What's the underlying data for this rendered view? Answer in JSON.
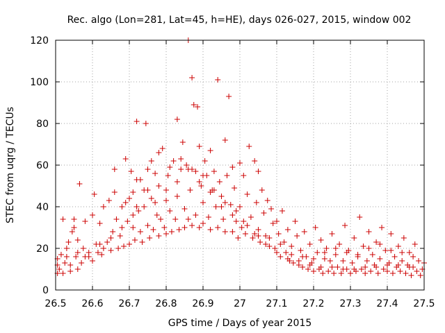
{
  "chart_data": {
    "type": "scatter",
    "title": "Rec. algo (Lon=281, Lat=45, h=HE), days 026-027, 2015, window 002",
    "xlabel": "GPS time / Days of year 2015",
    "ylabel": "STEC from uqrg / TECUs",
    "xlim": [
      26.5,
      27.5
    ],
    "ylim": [
      0,
      120
    ],
    "xticks": [
      26.5,
      26.6,
      26.7,
      26.8,
      26.9,
      27.0,
      27.1,
      27.2,
      27.3,
      27.4,
      27.5
    ],
    "xtick_labels": [
      "26.5",
      "26.6",
      "26.7",
      "26.8",
      "26.9",
      "27",
      "27.1",
      "27.2",
      "27.3",
      "27.4",
      "27.5"
    ],
    "yticks": [
      0,
      20,
      40,
      60,
      80,
      100,
      120
    ],
    "ytick_labels": [
      "0",
      "20",
      "40",
      "60",
      "80",
      "100",
      "120"
    ],
    "grid": true,
    "marker": "plus",
    "color": "#cc0000",
    "series": [
      {
        "points": [
          [
            26.505,
            8
          ],
          [
            26.505,
            12
          ],
          [
            26.505,
            15
          ],
          [
            26.51,
            10
          ],
          [
            26.515,
            17
          ],
          [
            26.52,
            34
          ],
          [
            26.52,
            8
          ],
          [
            26.525,
            13
          ],
          [
            26.53,
            20
          ],
          [
            26.535,
            23
          ],
          [
            26.54,
            9
          ],
          [
            26.54,
            12
          ],
          [
            26.545,
            28
          ],
          [
            26.55,
            30
          ],
          [
            26.55,
            34
          ],
          [
            26.555,
            16
          ],
          [
            26.56,
            10
          ],
          [
            26.56,
            24
          ],
          [
            26.565,
            51
          ],
          [
            26.57,
            13
          ],
          [
            26.575,
            20
          ],
          [
            26.58,
            16
          ],
          [
            26.58,
            33
          ],
          [
            26.59,
            18
          ],
          [
            26.6,
            14
          ],
          [
            26.605,
            46
          ],
          [
            26.61,
            22
          ],
          [
            26.615,
            18
          ],
          [
            26.62,
            32
          ],
          [
            26.625,
            17
          ],
          [
            26.63,
            20
          ],
          [
            26.64,
            23
          ],
          [
            26.645,
            43
          ],
          [
            26.65,
            19
          ],
          [
            26.655,
            28
          ],
          [
            26.66,
            58
          ],
          [
            26.665,
            34
          ],
          [
            26.67,
            20
          ],
          [
            26.675,
            26
          ],
          [
            26.68,
            40
          ],
          [
            26.685,
            21
          ],
          [
            26.69,
            63
          ],
          [
            26.695,
            33
          ],
          [
            26.7,
            22
          ],
          [
            26.7,
            44
          ],
          [
            26.705,
            57
          ],
          [
            26.71,
            30
          ],
          [
            26.71,
            47
          ],
          [
            26.715,
            24
          ],
          [
            26.72,
            81
          ],
          [
            26.72,
            40
          ],
          [
            26.725,
            38
          ],
          [
            26.73,
            53
          ],
          [
            26.73,
            28
          ],
          [
            26.735,
            23
          ],
          [
            26.74,
            40
          ],
          [
            26.745,
            80
          ],
          [
            26.75,
            31
          ],
          [
            26.75,
            48
          ],
          [
            26.755,
            25
          ],
          [
            26.76,
            62
          ],
          [
            26.76,
            44
          ],
          [
            26.765,
            29
          ],
          [
            26.77,
            56
          ],
          [
            26.775,
            36
          ],
          [
            26.78,
            26
          ],
          [
            26.78,
            50
          ],
          [
            26.785,
            34
          ],
          [
            26.79,
            68
          ],
          [
            26.795,
            30
          ],
          [
            26.8,
            43
          ],
          [
            26.8,
            27
          ],
          [
            26.805,
            55
          ],
          [
            26.81,
            38
          ],
          [
            26.815,
            28
          ],
          [
            26.82,
            62
          ],
          [
            26.825,
            34
          ],
          [
            26.83,
            82
          ],
          [
            26.83,
            45
          ],
          [
            26.835,
            29
          ],
          [
            26.84,
            58
          ],
          [
            26.845,
            71
          ],
          [
            26.85,
            39
          ],
          [
            26.85,
            30
          ],
          [
            26.855,
            60
          ],
          [
            26.86,
            120
          ],
          [
            26.86,
            34
          ],
          [
            26.865,
            48
          ],
          [
            26.87,
            102
          ],
          [
            26.87,
            31
          ],
          [
            26.875,
            89
          ],
          [
            26.88,
            57
          ],
          [
            26.88,
            36
          ],
          [
            26.885,
            88
          ],
          [
            26.89,
            30
          ],
          [
            26.89,
            69
          ],
          [
            26.895,
            50
          ],
          [
            26.9,
            42
          ],
          [
            26.9,
            32
          ],
          [
            26.905,
            62
          ],
          [
            26.91,
            55
          ],
          [
            26.915,
            35
          ],
          [
            26.92,
            67
          ],
          [
            26.92,
            29
          ],
          [
            26.925,
            48
          ],
          [
            26.93,
            57
          ],
          [
            26.935,
            40
          ],
          [
            26.94,
            30
          ],
          [
            26.94,
            101
          ],
          [
            26.945,
            52
          ],
          [
            26.95,
            45
          ],
          [
            26.955,
            34
          ],
          [
            26.96,
            72
          ],
          [
            26.96,
            28
          ],
          [
            26.965,
            55
          ],
          [
            26.97,
            93
          ],
          [
            26.975,
            41
          ],
          [
            26.98,
            28
          ],
          [
            26.98,
            59
          ],
          [
            26.985,
            49
          ],
          [
            26.99,
            33
          ],
          [
            26.995,
            25
          ],
          [
            27.0,
            61
          ],
          [
            27.0,
            40
          ],
          [
            27.005,
            30
          ],
          [
            27.01,
            55
          ],
          [
            27.015,
            27
          ],
          [
            27.02,
            46
          ],
          [
            27.025,
            69
          ],
          [
            27.03,
            35
          ],
          [
            27.035,
            25
          ],
          [
            27.04,
            62
          ],
          [
            27.045,
            42
          ],
          [
            27.05,
            29
          ],
          [
            27.05,
            57
          ],
          [
            27.055,
            23
          ],
          [
            27.06,
            48
          ],
          [
            27.065,
            37
          ],
          [
            27.07,
            26
          ],
          [
            27.075,
            43
          ],
          [
            27.08,
            21
          ],
          [
            27.085,
            39
          ],
          [
            27.09,
            32
          ],
          [
            27.095,
            20
          ],
          [
            27.1,
            33
          ],
          [
            27.105,
            27
          ],
          [
            27.11,
            16
          ],
          [
            27.115,
            38
          ],
          [
            27.12,
            23
          ],
          [
            27.125,
            18
          ],
          [
            27.13,
            29
          ],
          [
            27.135,
            14
          ],
          [
            27.14,
            21
          ],
          [
            27.145,
            13
          ],
          [
            27.15,
            33
          ],
          [
            27.155,
            26
          ],
          [
            27.16,
            12
          ],
          [
            27.165,
            19
          ],
          [
            27.17,
            11
          ],
          [
            27.175,
            28
          ],
          [
            27.18,
            16
          ],
          [
            27.185,
            10
          ],
          [
            27.19,
            22
          ],
          [
            27.195,
            13
          ],
          [
            27.2,
            9
          ],
          [
            27.205,
            30
          ],
          [
            27.21,
            18
          ],
          [
            27.215,
            10
          ],
          [
            27.22,
            24
          ],
          [
            27.225,
            8
          ],
          [
            27.23,
            15
          ],
          [
            27.235,
            20
          ],
          [
            27.24,
            9
          ],
          [
            27.245,
            14
          ],
          [
            27.25,
            27
          ],
          [
            27.255,
            8
          ],
          [
            27.26,
            17
          ],
          [
            27.265,
            11
          ],
          [
            27.27,
            22
          ],
          [
            27.275,
            8
          ],
          [
            27.28,
            14
          ],
          [
            27.285,
            31
          ],
          [
            27.29,
            10
          ],
          [
            27.295,
            19
          ],
          [
            27.3,
            8
          ],
          [
            27.305,
            13
          ],
          [
            27.31,
            25
          ],
          [
            27.315,
            9
          ],
          [
            27.32,
            16
          ],
          [
            27.325,
            35
          ],
          [
            27.33,
            10
          ],
          [
            27.335,
            21
          ],
          [
            27.34,
            8
          ],
          [
            27.345,
            14
          ],
          [
            27.35,
            28
          ],
          [
            27.355,
            9
          ],
          [
            27.36,
            17
          ],
          [
            27.365,
            12
          ],
          [
            27.37,
            23
          ],
          [
            27.375,
            8
          ],
          [
            27.38,
            15
          ],
          [
            27.385,
            30
          ],
          [
            27.39,
            10
          ],
          [
            27.395,
            19
          ],
          [
            27.4,
            9
          ],
          [
            27.405,
            13
          ],
          [
            27.41,
            27
          ],
          [
            27.415,
            8
          ],
          [
            27.42,
            16
          ],
          [
            27.425,
            11
          ],
          [
            27.43,
            21
          ],
          [
            27.435,
            9
          ],
          [
            27.44,
            14
          ],
          [
            27.445,
            25
          ],
          [
            27.45,
            8
          ],
          [
            27.455,
            12
          ],
          [
            27.46,
            18
          ],
          [
            27.465,
            7
          ],
          [
            27.47,
            11
          ],
          [
            27.475,
            22
          ],
          [
            27.48,
            9
          ],
          [
            27.485,
            14
          ],
          [
            27.49,
            7
          ],
          [
            27.495,
            10
          ],
          [
            26.53,
            16
          ],
          [
            26.56,
            18
          ],
          [
            26.59,
            16
          ],
          [
            26.62,
            22
          ],
          [
            26.65,
            25
          ],
          [
            26.68,
            30
          ],
          [
            26.71,
            36
          ],
          [
            26.74,
            48
          ],
          [
            26.77,
            42
          ],
          [
            26.8,
            48
          ],
          [
            26.83,
            52
          ],
          [
            26.86,
            58
          ],
          [
            26.89,
            52
          ],
          [
            26.92,
            47
          ],
          [
            26.95,
            40
          ],
          [
            26.98,
            36
          ],
          [
            27.01,
            33
          ],
          [
            27.04,
            27
          ],
          [
            27.07,
            22
          ],
          [
            27.1,
            18
          ],
          [
            27.13,
            15
          ],
          [
            27.16,
            14
          ],
          [
            27.19,
            12
          ],
          [
            27.22,
            11
          ],
          [
            27.25,
            11
          ],
          [
            27.28,
            10
          ],
          [
            27.31,
            10
          ],
          [
            27.34,
            11
          ],
          [
            27.37,
            11
          ],
          [
            27.4,
            12
          ],
          [
            27.43,
            12
          ],
          [
            27.46,
            11
          ],
          [
            26.6,
            36
          ],
          [
            26.63,
            40
          ],
          [
            26.66,
            47
          ],
          [
            26.69,
            42
          ],
          [
            26.72,
            53
          ],
          [
            26.75,
            58
          ],
          [
            26.78,
            66
          ],
          [
            26.81,
            59
          ],
          [
            26.84,
            63
          ],
          [
            26.87,
            58
          ],
          [
            26.9,
            55
          ],
          [
            26.93,
            48
          ],
          [
            26.96,
            42
          ],
          [
            26.99,
            38
          ],
          [
            27.02,
            31
          ],
          [
            27.05,
            26
          ],
          [
            27.08,
            25
          ],
          [
            27.11,
            22
          ],
          [
            27.14,
            17
          ],
          [
            27.17,
            16
          ],
          [
            27.2,
            15
          ],
          [
            27.23,
            18
          ],
          [
            27.26,
            20
          ],
          [
            27.29,
            18
          ],
          [
            27.32,
            17
          ],
          [
            27.35,
            20
          ],
          [
            27.38,
            22
          ],
          [
            27.41,
            19
          ],
          [
            27.44,
            18
          ],
          [
            27.47,
            16
          ],
          [
            27.5,
            13
          ]
        ]
      }
    ]
  }
}
